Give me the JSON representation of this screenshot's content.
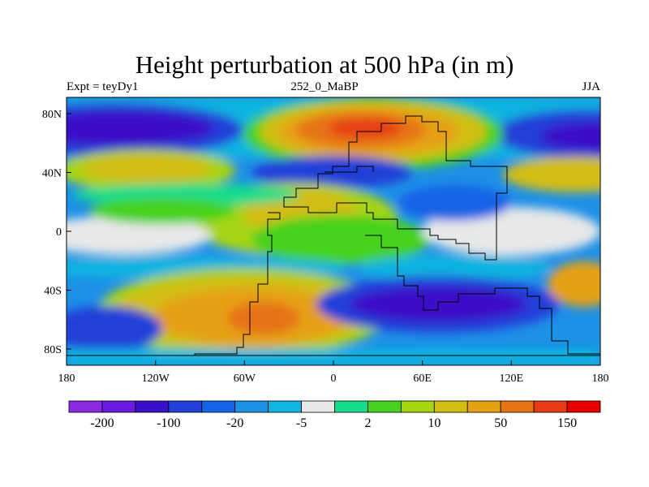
{
  "title": "Height perturbation at 500 hPa (in m)",
  "subtitle_left": "Expt = teyDy1",
  "subtitle_center": "252_0_MaBP",
  "subtitle_right": "JJA",
  "x_ticks": [
    "180",
    "120W",
    "60W",
    "0",
    "60E",
    "120E",
    "180"
  ],
  "y_ticks": [
    "80N",
    "40N",
    "0",
    "40S",
    "80S"
  ],
  "colorbar": {
    "colors": [
      "#8a2be2",
      "#6a1be0",
      "#3a10c8",
      "#2040d8",
      "#1464e6",
      "#1e90e6",
      "#10b4e0",
      "#e8e8e8",
      "#18dc8c",
      "#46d21e",
      "#a8d414",
      "#d2be14",
      "#e6a014",
      "#e67314",
      "#e63c14",
      "#e60000"
    ],
    "labels": [
      "-200",
      "-100",
      "-20",
      "-5",
      "2",
      "10",
      "50",
      "150"
    ]
  },
  "palette": {
    "bg": "#1e90e6",
    "deep_blue": "#3a10c8",
    "blue": "#2040d8",
    "mid_blue": "#1464e6",
    "cyan": "#10b4e0",
    "grey": "#e8e8e8",
    "teal": "#18dc8c",
    "green": "#46d21e",
    "lime": "#a8d414",
    "yellow": "#d2be14",
    "orange": "#e6a014",
    "dark_orange": "#e67314",
    "red": "#e63c14"
  }
}
